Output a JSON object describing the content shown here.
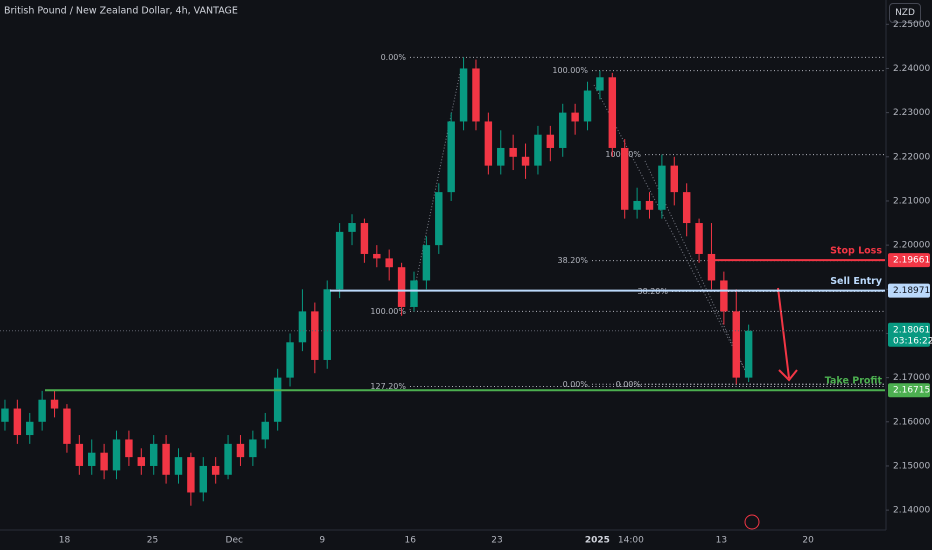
{
  "chart_data": {
    "type": "candlestick",
    "title": "British Pound / New Zealand Dollar, 4h, VANTAGE",
    "currency": "NZD",
    "up_color": "#089981",
    "down_color": "#f23645",
    "open": [
      2.16,
      2.163,
      2.157,
      2.16,
      2.165,
      2.163,
      2.155,
      2.15,
      2.153,
      2.149,
      2.156,
      2.152,
      2.15,
      2.155,
      2.148,
      2.152,
      2.144,
      2.15,
      2.148,
      2.155,
      2.152,
      2.156,
      2.16,
      2.17,
      2.178,
      2.185,
      2.174,
      2.19,
      2.203,
      2.205,
      2.198,
      2.197,
      2.195,
      2.186,
      2.192,
      2.2,
      2.212,
      2.228,
      2.24,
      2.228,
      2.218,
      2.222,
      2.22,
      2.218,
      2.225,
      2.222,
      2.23,
      2.228,
      2.235,
      2.238,
      2.222,
      2.208,
      2.21,
      2.208,
      2.218,
      2.212,
      2.205,
      2.198,
      2.192,
      2.185,
      2.17
    ],
    "high": [
      2.165,
      2.165,
      2.162,
      2.167,
      2.167,
      2.164,
      2.157,
      2.156,
      2.155,
      2.158,
      2.158,
      2.154,
      2.157,
      2.157,
      2.154,
      2.153,
      2.152,
      2.152,
      2.157,
      2.157,
      2.158,
      2.162,
      2.172,
      2.18,
      2.19,
      2.187,
      2.192,
      2.205,
      2.207,
      2.206,
      2.2,
      2.199,
      2.196,
      2.194,
      2.202,
      2.214,
      2.23,
      2.2425,
      2.242,
      2.23,
      2.226,
      2.225,
      2.223,
      2.227,
      2.227,
      2.232,
      2.232,
      2.237,
      2.2395,
      2.239,
      2.224,
      2.213,
      2.212,
      2.2205,
      2.22,
      2.214,
      2.206,
      2.205,
      2.194,
      2.19,
      2.182
    ],
    "low": [
      2.158,
      2.155,
      2.155,
      2.158,
      2.161,
      2.153,
      2.148,
      2.148,
      2.147,
      2.147,
      2.15,
      2.148,
      2.148,
      2.146,
      2.146,
      2.141,
      2.142,
      2.146,
      2.147,
      2.15,
      2.15,
      2.154,
      2.158,
      2.168,
      2.176,
      2.171,
      2.172,
      2.188,
      2.2,
      2.196,
      2.195,
      2.192,
      2.184,
      2.185,
      2.19,
      2.198,
      2.21,
      2.226,
      2.226,
      2.216,
      2.216,
      2.217,
      2.215,
      2.216,
      2.219,
      2.22,
      2.225,
      2.226,
      2.233,
      2.22,
      2.206,
      2.206,
      2.206,
      2.206,
      2.209,
      2.202,
      2.196,
      2.19,
      2.182,
      2.1685,
      2.169
    ],
    "close": [
      2.163,
      2.157,
      2.16,
      2.165,
      2.163,
      2.155,
      2.15,
      2.153,
      2.149,
      2.156,
      2.152,
      2.15,
      2.155,
      2.148,
      2.152,
      2.144,
      2.15,
      2.148,
      2.155,
      2.152,
      2.156,
      2.16,
      2.17,
      2.178,
      2.185,
      2.174,
      2.19,
      2.203,
      2.205,
      2.198,
      2.197,
      2.195,
      2.186,
      2.192,
      2.2,
      2.212,
      2.228,
      2.24,
      2.228,
      2.218,
      2.222,
      2.22,
      2.218,
      2.225,
      2.222,
      2.23,
      2.228,
      2.235,
      2.238,
      2.222,
      2.208,
      2.21,
      2.208,
      2.218,
      2.212,
      2.205,
      2.198,
      2.192,
      2.185,
      2.17,
      2.18061
    ],
    "xlim": [
      -0.4,
      71
    ],
    "xticks": [
      {
        "value": 4.8,
        "label": "18"
      },
      {
        "value": 11.9,
        "label": "25"
      },
      {
        "value": 18.5,
        "label": "Dec"
      },
      {
        "value": 25.6,
        "label": "9"
      },
      {
        "value": 32.7,
        "label": "16"
      },
      {
        "value": 39.7,
        "label": "23"
      },
      {
        "value": 47.8,
        "label": "2025"
      },
      {
        "value": 50.5,
        "label": "14:00"
      },
      {
        "value": 57.8,
        "label": "13"
      },
      {
        "value": 64.8,
        "label": "20"
      }
    ],
    "ylim": [
      2.1355,
      2.2555
    ],
    "yticks": [
      {
        "value": 2.14,
        "label": "2.14000"
      },
      {
        "value": 2.15,
        "label": "2.15000"
      },
      {
        "value": 2.16,
        "label": "2.16000"
      },
      {
        "value": 2.17,
        "label": "2.17000"
      },
      {
        "value": 2.18,
        "label": "2.18000"
      },
      {
        "value": 2.19,
        "label": "2.19000"
      },
      {
        "value": 2.2,
        "label": "2.20000"
      },
      {
        "value": 2.21,
        "label": "2.21000"
      },
      {
        "value": 2.22,
        "label": "2.22000"
      },
      {
        "value": 2.23,
        "label": "2.23000"
      },
      {
        "value": 2.24,
        "label": "2.24000"
      },
      {
        "value": 2.25,
        "label": "2.25000"
      }
    ],
    "fib_levels": [
      {
        "label": "0.00%",
        "price": 2.2425
      },
      {
        "label": "100.00%",
        "price": 2.185
      },
      {
        "label": "127.20%",
        "price": 2.168
      },
      {
        "label": "100.00%",
        "price": 2.2395
      },
      {
        "label": "38.20%",
        "price": 2.1965
      },
      {
        "label": "0.00%",
        "price": 2.1685
      },
      {
        "label": "100.00%",
        "price": 2.2205
      },
      {
        "label": "38.20%",
        "price": 2.1895
      },
      {
        "label": "0.00%",
        "price": 2.1685
      }
    ],
    "levels": [
      {
        "name": "Stop Loss",
        "price": 2.19661,
        "color": "#f23645"
      },
      {
        "name": "Sell Entry",
        "price": 2.18971,
        "color": "#bbd9fb"
      },
      {
        "name": "Take Profit",
        "price": 2.16715,
        "color": "#4caf50"
      }
    ],
    "last_price": 2.18061,
    "countdown": "03:16:22"
  }
}
